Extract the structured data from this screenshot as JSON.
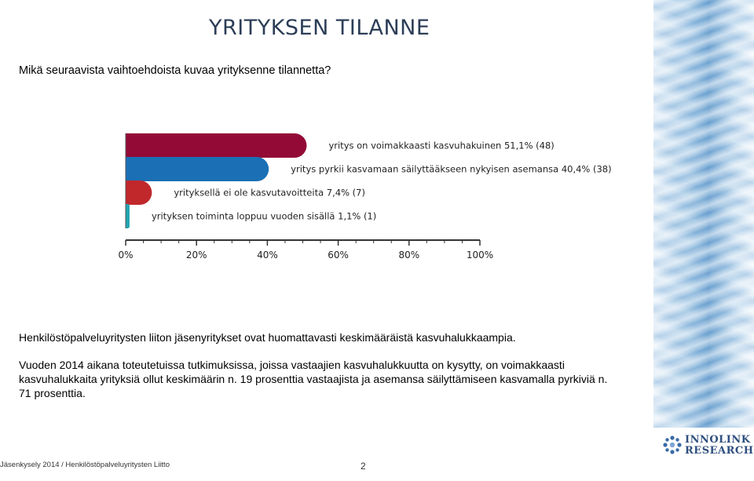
{
  "slide": {
    "title": "YRITYKSEN TILANNE",
    "question": "Mikä seuraavista vaihtoehdoista kuvaa yrityksenne tilannetta?"
  },
  "chart_data": {
    "type": "bar",
    "orientation": "horizontal",
    "categories": [
      "yritys on voimakkaasti kasvuhakuinen",
      "yritys pyrkii kasvamaan säilyttääkseen nykyisen asemansa",
      "yrityksellä ei ole kasvutavoitteita",
      "yrityksen toiminta loppuu vuoden sisällä"
    ],
    "values": [
      51.1,
      40.4,
      7.4,
      1.1
    ],
    "counts": [
      48,
      38,
      7,
      1
    ],
    "bar_labels": [
      "yritys on voimakkaasti kasvuhakuinen 51,1% (48)",
      "yritys pyrkii kasvamaan säilyttääkseen nykyisen asemansa 40,4% (38)",
      "yrityksellä ei ole kasvutavoitteita 7,4% (7)",
      "yrityksen toiminta loppuu vuoden sisällä 1,1% (1)"
    ],
    "colors": [
      "#930a36",
      "#1a6fb5",
      "#c0282c",
      "#21a6b4"
    ],
    "xlim": [
      0,
      100
    ],
    "x_ticks": [
      "0%",
      "20%",
      "40%",
      "60%",
      "80%",
      "100%"
    ],
    "x_tick_values": [
      0,
      20,
      40,
      60,
      80,
      100
    ],
    "grid": false,
    "legend": "none"
  },
  "summary": {
    "paragraph1": "Henkilöstöpalveluyritysten liiton jäsenyritykset ovat huomattavasti keskimääräistä kasvuhalukkaampia.",
    "paragraph2": "Vuoden 2014 aikana toteutetuissa tutkimuksissa, joissa vastaajien kasvuhalukkuutta on kysytty, on voimakkaasti kasvuhalukkaita yrityksiä ollut keskimäärin n. 19 prosenttia vastaajista ja asemansa säilyttämiseen kasvamalla pyrkiviä n. 71 prosenttia."
  },
  "footer": {
    "source": "Jäsenkysely 2014 / Henkilöstöpalveluyritysten Liitto",
    "page_number": "2"
  },
  "logo": {
    "line1": "INNOLINK",
    "line2": "RESEARCH"
  }
}
